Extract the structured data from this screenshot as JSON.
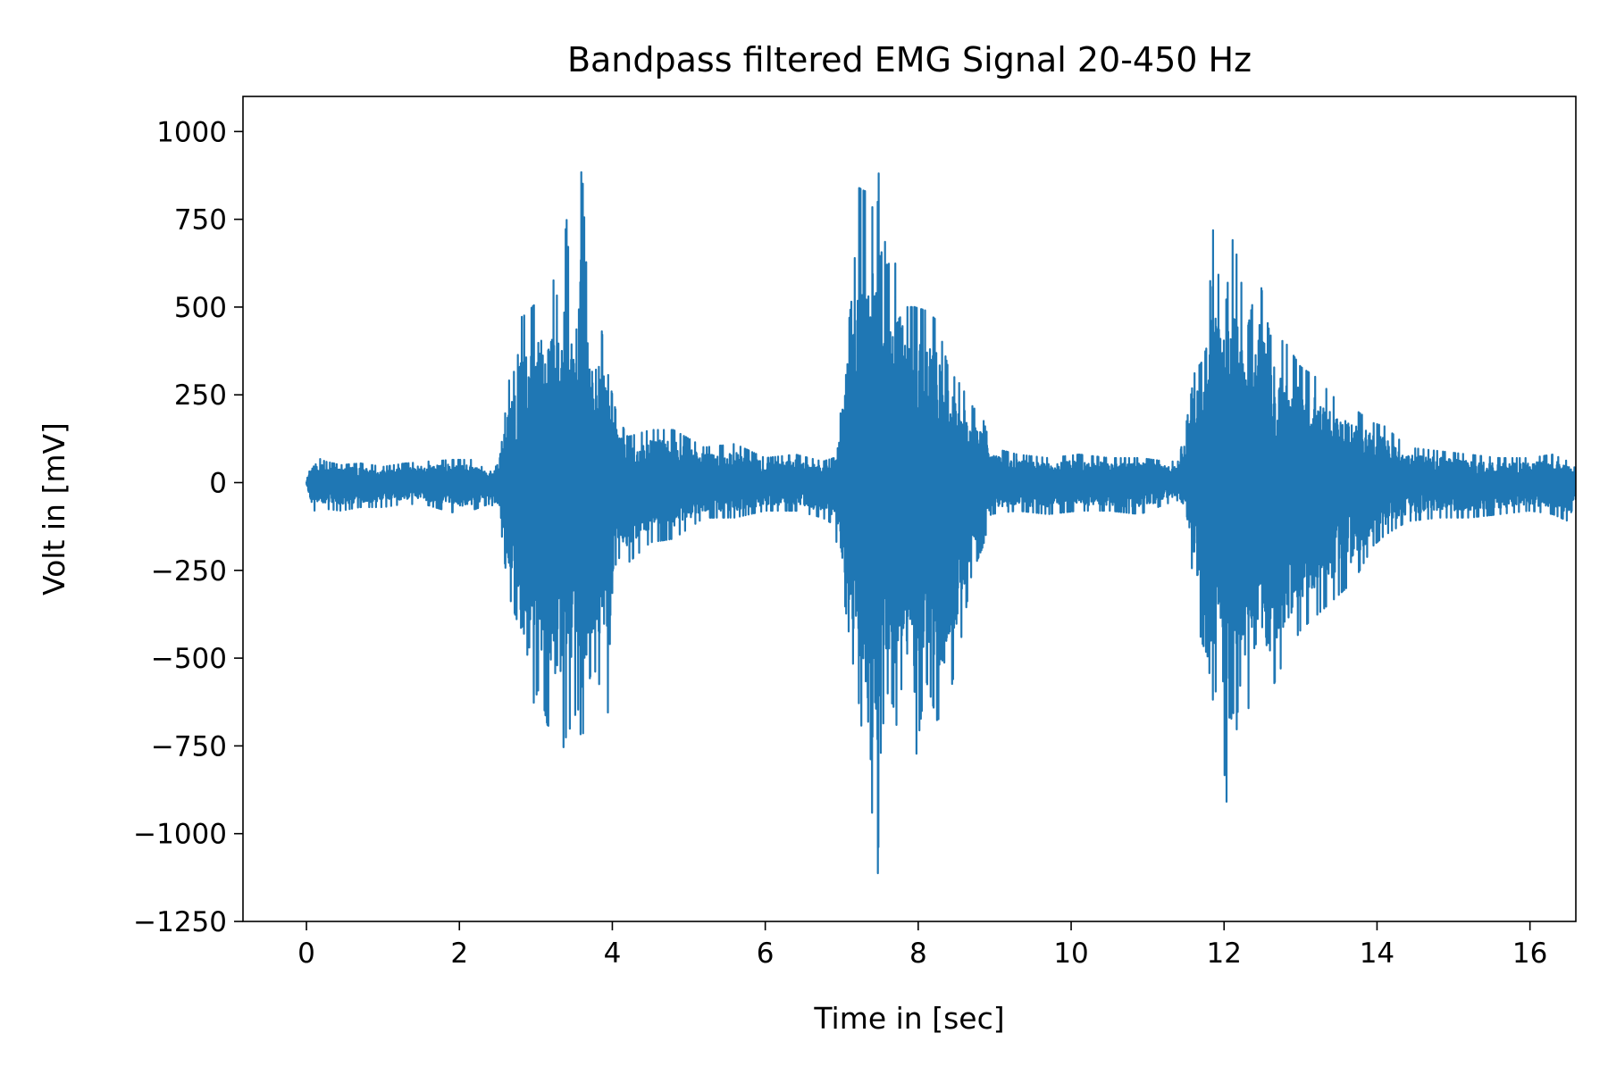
{
  "chart_data": {
    "type": "line",
    "title": "Bandpass filtered EMG Signal 20-450 Hz",
    "xlabel": "Time in [sec]",
    "ylabel": "Volt in [mV]",
    "xlim": [
      -0.83,
      16.6
    ],
    "ylim": [
      -1250,
      1100
    ],
    "x_ticks": [
      0,
      2,
      4,
      6,
      8,
      10,
      12,
      14,
      16
    ],
    "x_tick_labels": [
      "0",
      "2",
      "4",
      "6",
      "8",
      "10",
      "12",
      "14",
      "16"
    ],
    "y_ticks": [
      1000,
      750,
      500,
      250,
      0,
      -250,
      -500,
      -750,
      -1000,
      -1250
    ],
    "y_tick_labels": [
      "1000",
      "750",
      "500",
      "250",
      "0",
      "−250",
      "−500",
      "−750",
      "−1000",
      "−1250"
    ],
    "grid": false,
    "legend": "none",
    "series": [
      {
        "color": "#1f77b4",
        "x": [
          0.0,
          0.1,
          0.25,
          0.45,
          0.7,
          1.0,
          1.3,
          1.6,
          1.9,
          2.15,
          2.4,
          2.52,
          2.6,
          2.66,
          2.75,
          2.8,
          2.88,
          2.95,
          3.05,
          3.15,
          3.25,
          3.32,
          3.4,
          3.47,
          3.55,
          3.6,
          3.68,
          3.75,
          3.85,
          3.95,
          4.05,
          4.2,
          4.5,
          4.8,
          5.2,
          5.6,
          6.0,
          6.4,
          6.75,
          6.9,
          6.95,
          7.05,
          7.15,
          7.22,
          7.3,
          7.38,
          7.43,
          7.47,
          7.5,
          7.58,
          7.68,
          7.78,
          7.85,
          7.95,
          8.1,
          8.25,
          8.4,
          8.55,
          8.7,
          8.85,
          8.95,
          9.3,
          9.7,
          10.1,
          10.5,
          10.9,
          11.25,
          11.4,
          11.5,
          11.62,
          11.7,
          11.78,
          11.85,
          11.95,
          12.02,
          12.1,
          12.2,
          12.3,
          12.45,
          12.6,
          12.8,
          13.0,
          13.2,
          13.45,
          13.7,
          13.95,
          14.1,
          14.4,
          14.8,
          15.2,
          15.6,
          16.0,
          16.3,
          16.5,
          16.6
        ],
        "upper": [
          5,
          75,
          60,
          50,
          55,
          45,
          55,
          60,
          65,
          65,
          30,
          55,
          200,
          310,
          320,
          470,
          480,
          500,
          520,
          560,
          580,
          450,
          760,
          480,
          590,
          920,
          520,
          400,
          450,
          300,
          200,
          130,
          150,
          150,
          100,
          110,
          70,
          80,
          60,
          70,
          100,
          380,
          560,
          840,
          830,
          840,
          700,
          800,
          990,
          620,
          630,
          600,
          500,
          500,
          490,
          460,
          320,
          280,
          220,
          180,
          100,
          80,
          70,
          80,
          70,
          70,
          60,
          60,
          160,
          320,
          340,
          390,
          730,
          550,
          500,
          700,
          620,
          430,
          600,
          420,
          400,
          330,
          300,
          240,
          210,
          170,
          160,
          100,
          90,
          80,
          70,
          70,
          80,
          60,
          40
        ],
        "lower": [
          -5,
          -80,
          -75,
          -80,
          -70,
          -70,
          -60,
          -65,
          -85,
          -80,
          -60,
          -80,
          -240,
          -330,
          -390,
          -560,
          -660,
          -640,
          -580,
          -690,
          -710,
          -790,
          -720,
          -690,
          -640,
          -750,
          -580,
          -520,
          -590,
          -660,
          -210,
          -230,
          -170,
          -160,
          -100,
          -100,
          -80,
          -80,
          -100,
          -120,
          -200,
          -360,
          -520,
          -620,
          -780,
          -1010,
          -800,
          -1150,
          -800,
          -590,
          -640,
          -780,
          -600,
          -820,
          -560,
          -680,
          -620,
          -460,
          -260,
          -180,
          -90,
          -80,
          -90,
          -80,
          -80,
          -90,
          -60,
          -50,
          -100,
          -320,
          -450,
          -490,
          -620,
          -560,
          -900,
          -960,
          -570,
          -650,
          -590,
          -600,
          -500,
          -420,
          -380,
          -330,
          -280,
          -180,
          -150,
          -110,
          -100,
          -100,
          -90,
          -80,
          -90,
          -110,
          -45
        ]
      }
    ]
  }
}
